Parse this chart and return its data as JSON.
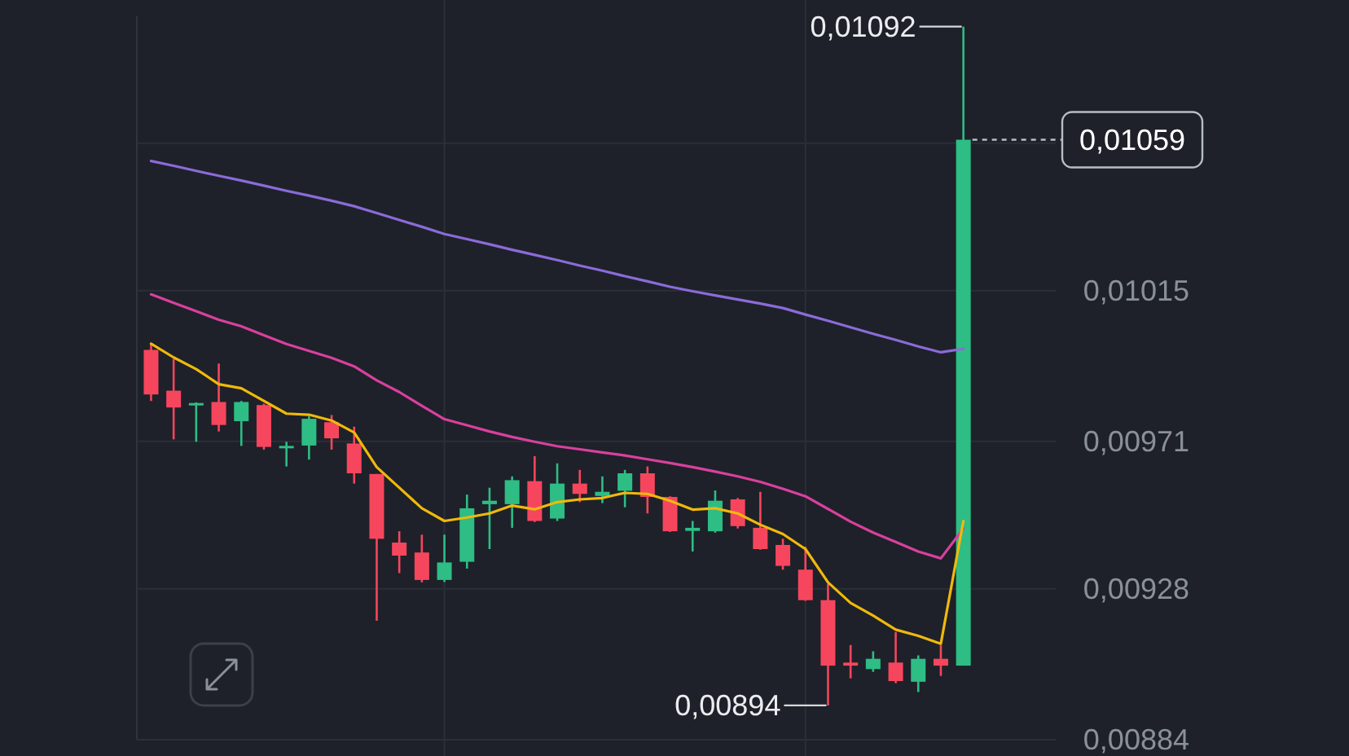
{
  "chart_data": {
    "type": "candlestick",
    "categories": [
      null,
      null,
      null,
      null,
      null,
      null,
      null,
      null,
      null,
      null,
      null,
      null,
      null,
      null,
      null,
      null,
      null,
      null,
      null,
      null,
      null,
      null,
      null,
      null,
      null,
      null,
      null,
      null,
      null,
      null,
      null,
      null,
      null,
      null,
      null,
      null,
      null
    ],
    "ohlc": [
      [
        0.009977,
        0.009994,
        0.009828,
        0.009847
      ],
      [
        0.009858,
        0.00995,
        0.009716,
        0.009809
      ],
      [
        0.009818,
        0.009824,
        0.009709,
        0.009822
      ],
      [
        0.009825,
        0.009937,
        0.009739,
        0.009758
      ],
      [
        0.009769,
        0.009828,
        0.009697,
        0.009825
      ],
      [
        0.009816,
        0.00982,
        0.009686,
        0.009694
      ],
      [
        0.00969,
        0.009709,
        0.009637,
        0.009697
      ],
      [
        0.009698,
        0.009783,
        0.009657,
        0.009776
      ],
      [
        0.009766,
        0.009787,
        0.009686,
        0.009719
      ],
      [
        0.009704,
        0.009753,
        0.009587,
        0.009617
      ],
      [
        0.009615,
        0.009615,
        0.009187,
        0.009426
      ],
      [
        0.009415,
        0.009448,
        0.009326,
        0.009377
      ],
      [
        0.009386,
        0.009438,
        0.009299,
        0.009306
      ],
      [
        0.009306,
        0.009438,
        0.0093,
        0.009357
      ],
      [
        0.009359,
        0.009555,
        0.009339,
        0.009515
      ],
      [
        0.009527,
        0.009575,
        0.009396,
        0.009537
      ],
      [
        0.009527,
        0.009608,
        0.009458,
        0.009597
      ],
      [
        0.009594,
        0.009667,
        0.009475,
        0.009478
      ],
      [
        0.009485,
        0.009646,
        0.009478,
        0.009587
      ],
      [
        0.009587,
        0.009627,
        0.009533,
        0.009557
      ],
      [
        0.009551,
        0.009608,
        0.00953,
        0.009563
      ],
      [
        0.009566,
        0.009627,
        0.009518,
        0.009617
      ],
      [
        0.009617,
        0.009637,
        0.0095,
        0.009548
      ],
      [
        0.009548,
        0.00955,
        0.009446,
        0.009448
      ],
      [
        0.009449,
        0.009478,
        0.009389,
        0.009458
      ],
      [
        0.009448,
        0.009567,
        0.009444,
        0.009537
      ],
      [
        0.009541,
        0.009545,
        0.009456,
        0.009463
      ],
      [
        0.009458,
        0.009563,
        0.009394,
        0.009396
      ],
      [
        0.009408,
        0.009426,
        0.009336,
        0.009347
      ],
      [
        0.009336,
        0.009403,
        0.009245,
        0.009247
      ],
      [
        0.009247,
        0.009295,
        0.00894,
        0.009056
      ],
      [
        0.009065,
        0.009116,
        0.009019,
        0.009056
      ],
      [
        0.009046,
        0.009098,
        0.009038,
        0.009076
      ],
      [
        0.009065,
        0.009154,
        0.009005,
        0.009011
      ],
      [
        0.009009,
        0.009086,
        0.008979,
        0.009076
      ],
      [
        0.009076,
        0.009116,
        0.009026,
        0.009056
      ],
      [
        0.009056,
        0.01092,
        0.009056,
        0.01059
      ]
    ],
    "colors": [
      "#f6465d",
      "#f6465d",
      "#2ebd85",
      "#f6465d",
      "#2ebd85",
      "#f6465d",
      "#2ebd85",
      "#2ebd85",
      "#f6465d",
      "#f6465d",
      "#f6465d",
      "#f6465d",
      "#f6465d",
      "#2ebd85",
      "#2ebd85",
      "#2ebd85",
      "#2ebd85",
      "#f6465d",
      "#2ebd85",
      "#f6465d",
      "#2ebd85",
      "#2ebd85",
      "#f6465d",
      "#f6465d",
      "#2ebd85",
      "#2ebd85",
      "#f6465d",
      "#f6465d",
      "#f6465d",
      "#f6465d",
      "#f6465d",
      "#f6465d",
      "#2ebd85",
      "#f6465d",
      "#2ebd85",
      "#f6465d",
      "#2ebd85"
    ],
    "series": [
      {
        "type": "line",
        "color": "#8b6bd9",
        "values": [
          0.010528,
          0.010514,
          0.010499,
          0.010485,
          0.010471,
          0.010456,
          0.010441,
          0.010427,
          0.010412,
          0.010396,
          0.010376,
          0.010356,
          0.010336,
          0.010315,
          0.0103,
          0.010285,
          0.010269,
          0.010254,
          0.010239,
          0.010223,
          0.010208,
          0.010192,
          0.010177,
          0.010161,
          0.010148,
          0.010136,
          0.010124,
          0.010112,
          0.010099,
          0.01008,
          0.010062,
          0.010043,
          0.010024,
          0.010006,
          0.009987,
          0.00997,
          0.00998
        ]
      },
      {
        "type": "line",
        "color": "#d9409f",
        "values": [
          0.010139,
          0.010114,
          0.01009,
          0.010065,
          0.010046,
          0.01002,
          0.009994,
          0.009974,
          0.009954,
          0.009929,
          0.009888,
          0.009854,
          0.009814,
          0.009775,
          0.009757,
          0.009739,
          0.009723,
          0.009709,
          0.009696,
          0.009687,
          0.009678,
          0.009669,
          0.009658,
          0.009647,
          0.009635,
          0.009622,
          0.009608,
          0.009592,
          0.009572,
          0.00955,
          0.009513,
          0.009476,
          0.009444,
          0.009417,
          0.009389,
          0.009369,
          0.009456
        ]
      },
      {
        "type": "line",
        "color": "#f0b90b",
        "values": [
          0.009995,
          0.009955,
          0.009921,
          0.009877,
          0.009865,
          0.009828,
          0.009791,
          0.009788,
          0.009771,
          0.009736,
          0.009635,
          0.009575,
          0.009515,
          0.009478,
          0.009488,
          0.0095,
          0.009523,
          0.009512,
          0.009533,
          0.009541,
          0.009545,
          0.00956,
          0.009557,
          0.009537,
          0.009511,
          0.009515,
          0.0095,
          0.009467,
          0.00944,
          0.009396,
          0.009299,
          0.009239,
          0.009202,
          0.009161,
          0.009143,
          0.00912,
          0.009478
        ]
      }
    ],
    "ylim": [
      0.00884,
      0.01095
    ],
    "yticks": [
      {
        "value": 0.01058,
        "label": null
      },
      {
        "value": 0.01015,
        "label": "0,01015"
      },
      {
        "value": 0.00971,
        "label": "0,00971"
      },
      {
        "value": 0.00928,
        "label": "0,00928"
      },
      {
        "value": 0.00884,
        "label": "0,00884"
      }
    ],
    "ref_lines": [
      {
        "axis": "y",
        "value": 0.01059,
        "label": "0,01059",
        "line_style": "dashed",
        "color": "#b7bdc6"
      }
    ],
    "annotations": [
      "0,01092",
      "0,00894"
    ],
    "grid": true
  }
}
